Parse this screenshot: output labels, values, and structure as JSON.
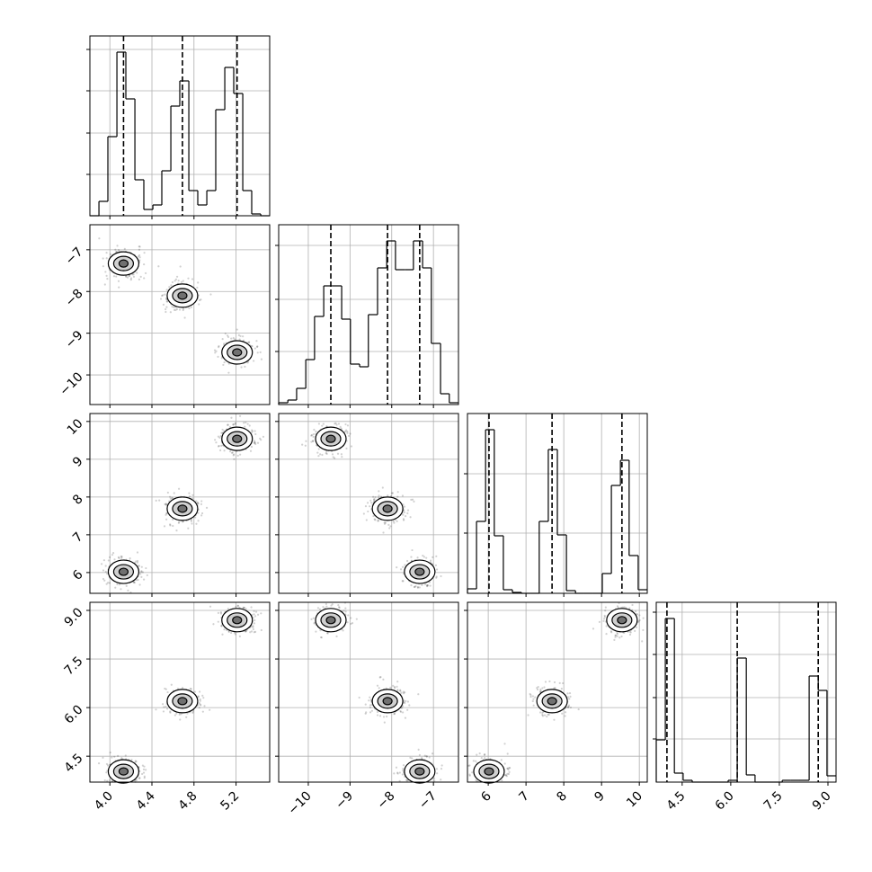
{
  "chart_data": {
    "type": "corner",
    "ranges": [
      [
        3.81,
        5.52
      ],
      [
        -10.71,
        -6.4
      ],
      [
        5.45,
        10.21
      ],
      [
        3.7,
        9.25
      ]
    ],
    "ticks": [
      [
        {
          "value": 4,
          "label": "4.0"
        },
        4.4,
        4.8,
        5.2
      ],
      [
        {
          "value": -10,
          "label": "−10"
        },
        {
          "value": -9,
          "label": "−9"
        },
        {
          "value": -8,
          "label": "−8"
        },
        {
          "value": -7,
          "label": "−7"
        }
      ],
      [
        6,
        7,
        8,
        9,
        10
      ],
      [
        4.5,
        {
          "value": 6,
          "label": "6.0"
        },
        7.5,
        {
          "value": 9,
          "label": "9.0"
        }
      ]
    ],
    "histograms": [
      {
        "bins": [
          3.81,
          3.896,
          3.981,
          4.067,
          4.152,
          4.238,
          4.323,
          4.409,
          4.494,
          4.58,
          4.665,
          4.751,
          4.836,
          4.922,
          5.007,
          5.093,
          5.178,
          5.264,
          5.349,
          5.435,
          5.52
        ],
        "counts": [
          0,
          16,
          88,
          182,
          130,
          40,
          7,
          12,
          50,
          122,
          150,
          28,
          12,
          28,
          118,
          165,
          136,
          28,
          2,
          0
        ],
        "ylim": [
          0,
          200
        ],
        "yticks": [
          46,
          92,
          139,
          185
        ]
      },
      {
        "bins": [
          -10.71,
          -10.49,
          -10.28,
          -10.06,
          -9.85,
          -9.63,
          -9.42,
          -9.2,
          -8.99,
          -8.77,
          -8.56,
          -8.34,
          -8.12,
          -7.91,
          -7.69,
          -7.48,
          -7.26,
          -7.05,
          -6.83,
          -6.62,
          -6.4
        ],
        "counts": [
          2,
          5,
          18,
          50,
          98,
          132,
          132,
          95,
          45,
          42,
          100,
          152,
          182,
          150,
          150,
          182,
          152,
          68,
          12,
          2
        ],
        "ylim": [
          0,
          200
        ],
        "yticks": [
          59,
          117,
          177
        ]
      },
      {
        "bins": [
          5.45,
          5.69,
          5.93,
          6.16,
          6.4,
          6.64,
          6.88,
          7.12,
          7.35,
          7.59,
          7.83,
          8.07,
          8.31,
          8.54,
          8.78,
          9.02,
          9.26,
          9.5,
          9.73,
          9.97,
          10.21
        ],
        "counts": [
          5,
          80,
          182,
          64,
          4,
          1,
          0,
          0,
          80,
          160,
          65,
          3,
          0,
          0,
          0,
          22,
          120,
          148,
          42,
          4
        ],
        "ylim": [
          0,
          200
        ],
        "yticks": [
          67,
          133
        ]
      },
      {
        "bins": [
          3.7,
          3.98,
          4.26,
          4.53,
          4.81,
          5.09,
          5.37,
          5.64,
          5.92,
          6.2,
          6.48,
          6.75,
          7.03,
          7.31,
          7.59,
          7.86,
          8.14,
          8.42,
          8.7,
          8.97,
          9.25
        ],
        "counts": [
          47,
          182,
          10,
          2,
          0,
          0,
          0,
          0,
          2,
          138,
          8,
          0,
          0,
          0,
          2,
          2,
          2,
          118,
          102,
          7
        ],
        "ylim": [
          0,
          200
        ],
        "yticks": [
          48,
          94,
          142,
          189
        ]
      }
    ],
    "clusters": [
      [
        4.13,
        -7.33,
        6.02,
        4.03
      ],
      [
        4.69,
        -8.1,
        7.69,
        6.2
      ],
      [
        5.21,
        -9.46,
        9.54,
        8.7
      ]
    ],
    "grid": true
  }
}
